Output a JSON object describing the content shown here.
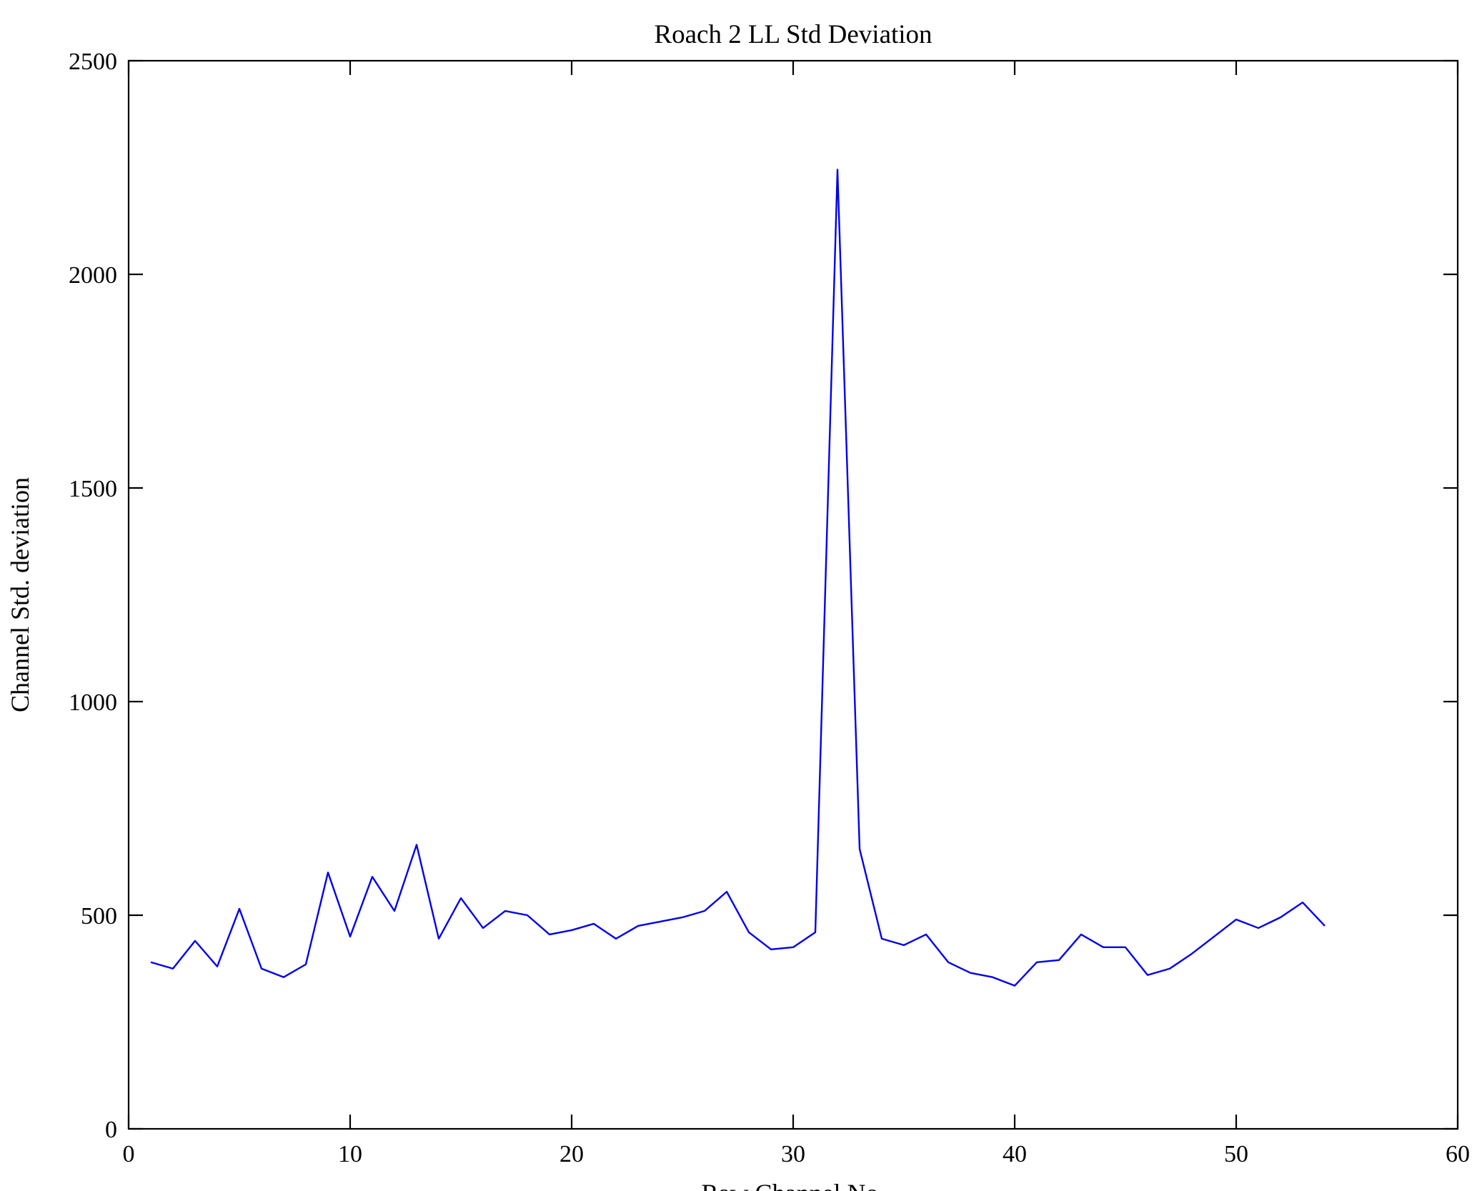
{
  "chart_data": {
    "type": "line",
    "title": "Roach 2 LL Std Deviation",
    "xlabel": "Raw Channel No.",
    "ylabel": "Channel Std. deviation",
    "xlim": [
      0,
      60
    ],
    "ylim": [
      0,
      2500
    ],
    "xticks": [
      0,
      10,
      20,
      30,
      40,
      50,
      60
    ],
    "yticks": [
      0,
      500,
      1000,
      1500,
      2000,
      2500
    ],
    "grid": false,
    "legend": null,
    "line_color": "#0000ee",
    "axis_color": "#000000",
    "background_color": "#ffffff",
    "series": [
      {
        "name": "Channel Std. deviation",
        "x": [
          1,
          2,
          3,
          4,
          5,
          6,
          7,
          8,
          9,
          10,
          11,
          12,
          13,
          14,
          15,
          16,
          17,
          18,
          19,
          20,
          21,
          22,
          23,
          24,
          25,
          26,
          27,
          28,
          29,
          30,
          31,
          32,
          33,
          34,
          35,
          36,
          37,
          38,
          39,
          40,
          41,
          42,
          43,
          44,
          45,
          46,
          47,
          48,
          49,
          50,
          51,
          52,
          53,
          54
        ],
        "y": [
          390,
          375,
          440,
          380,
          515,
          375,
          355,
          385,
          600,
          450,
          590,
          510,
          665,
          445,
          540,
          470,
          510,
          500,
          455,
          465,
          480,
          445,
          475,
          485,
          495,
          510,
          555,
          460,
          420,
          425,
          460,
          2245,
          655,
          445,
          430,
          455,
          390,
          365,
          355,
          335,
          390,
          395,
          455,
          425,
          425,
          360,
          375,
          410,
          450,
          490,
          470,
          495,
          530,
          475
        ]
      }
    ]
  }
}
